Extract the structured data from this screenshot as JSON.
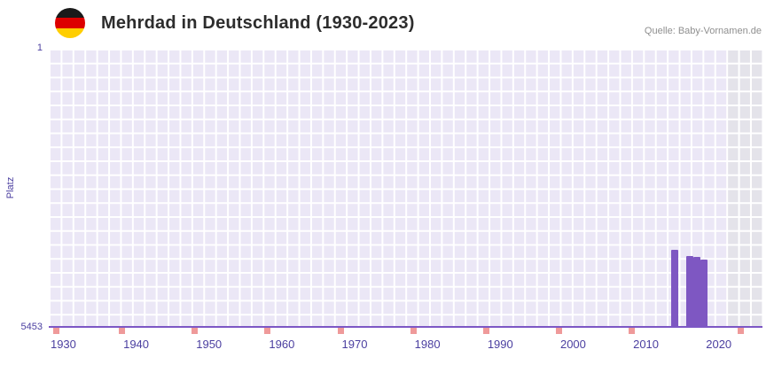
{
  "chart_data": {
    "type": "bar",
    "title": "Mehrdad in Deutschland (1930-2023)",
    "source": "Quelle: Baby-Vornamen.de",
    "ylabel": "Platz",
    "xlabel": "",
    "y_axis": {
      "min_label": "1",
      "max_label": "5453",
      "range": [
        1,
        5453
      ],
      "inverted": true
    },
    "x_range": [
      1928,
      2026
    ],
    "x_ticks": [
      {
        "year": 1930,
        "label": "1930"
      },
      {
        "year": 1940,
        "label": "1940"
      },
      {
        "year": 1950,
        "label": "1950"
      },
      {
        "year": 1960,
        "label": "1960"
      },
      {
        "year": 1970,
        "label": "1970"
      },
      {
        "year": 1980,
        "label": "1980"
      },
      {
        "year": 1990,
        "label": "1990"
      },
      {
        "year": 2000,
        "label": "2000"
      },
      {
        "year": 2010,
        "label": "2010"
      },
      {
        "year": 2020,
        "label": "2020"
      }
    ],
    "bars": [
      {
        "year": 2014,
        "rank": 3950
      },
      {
        "year": 2016,
        "rank": 4080
      },
      {
        "year": 2017,
        "rank": 4100
      },
      {
        "year": 2018,
        "rank": 4150
      }
    ],
    "no_data_marker_years": [
      1929,
      1938,
      1948,
      1958,
      1968,
      1978,
      1988,
      1998,
      2008,
      2023
    ],
    "highlight_band": {
      "start_year": 2021,
      "end_year": 2026
    },
    "grid": true,
    "legend_position": "none",
    "colors": {
      "bar": "#7e57c2",
      "plot_bg": "#ebe7f6",
      "grid_line": "#ffffff",
      "band_bg": "#e4e3ea",
      "axis_line": "#7d57c5",
      "tick_text": "#4b3fa0",
      "no_data_marker": "#ef9a9a",
      "title_text": "#2d2d2d",
      "source_text": "#8f8f8f"
    },
    "flag_icon": {
      "name": "germany-flag-icon",
      "stripes": [
        "#1a1a1a",
        "#dd0000",
        "#ffce00"
      ]
    }
  }
}
